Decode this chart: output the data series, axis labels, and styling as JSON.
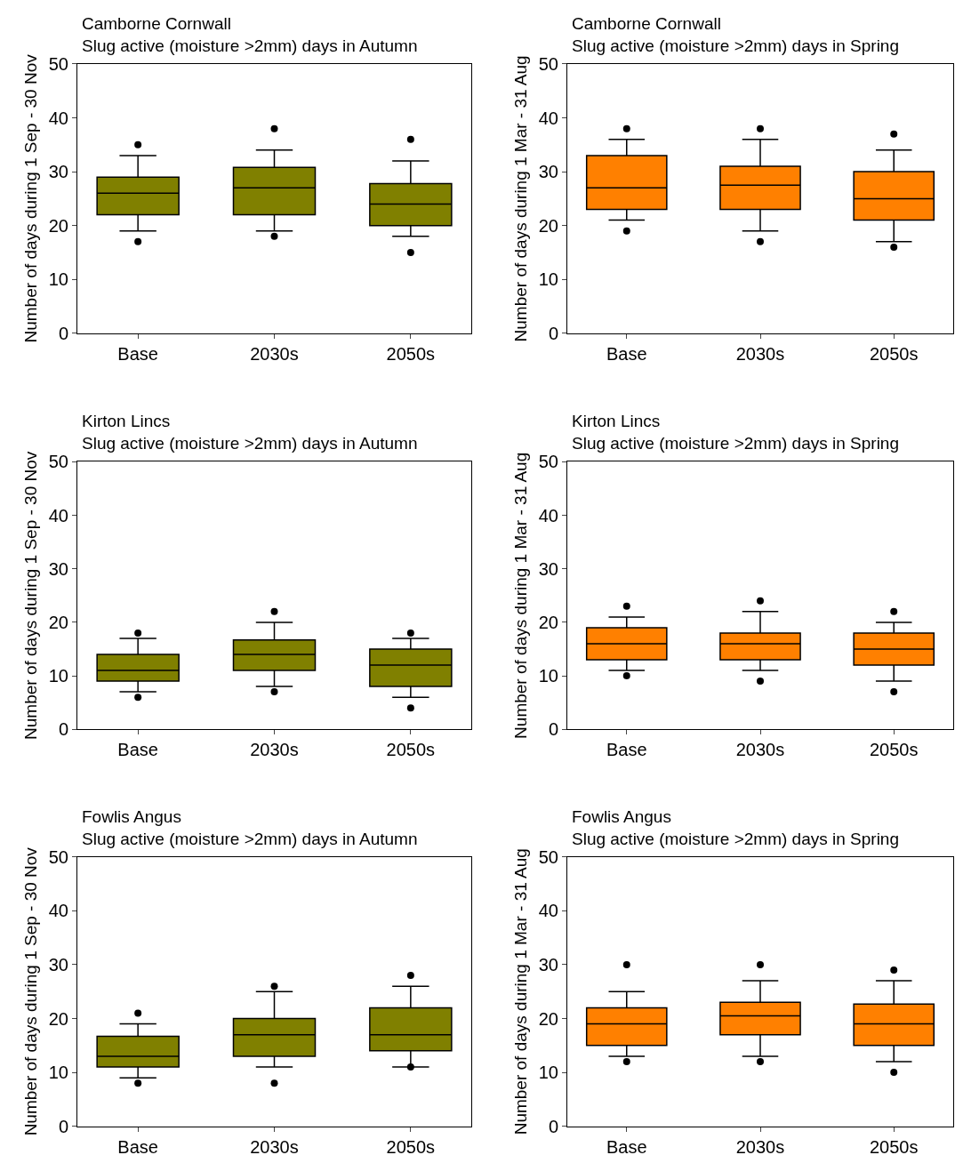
{
  "chart_data": [
    {
      "type": "box",
      "title": "Camborne Cornwall",
      "subtitle": "Slug active (moisture >2mm) days in Autumn",
      "ylabel": "Number of days during 1 Sep - 30 Nov",
      "categories": [
        "Base",
        "2030s",
        "2050s"
      ],
      "color": "#808000",
      "ylim": [
        0,
        50
      ],
      "yticks": [
        0,
        10,
        20,
        30,
        40,
        50
      ],
      "boxes": [
        {
          "low": 19,
          "q1": 22,
          "median": 26,
          "q3": 29,
          "high": 33,
          "outliers": [
            35,
            17
          ]
        },
        {
          "low": 19,
          "q1": 22,
          "median": 27,
          "q3": 30.8,
          "high": 34,
          "outliers": [
            38,
            18
          ]
        },
        {
          "low": 18,
          "q1": 20,
          "median": 24,
          "q3": 27.8,
          "high": 32,
          "outliers": [
            36,
            15
          ]
        }
      ]
    },
    {
      "type": "box",
      "title": "Camborne Cornwall",
      "subtitle": "Slug active (moisture >2mm) days in Spring",
      "ylabel": "Number of days during 1 Mar - 31 Aug",
      "categories": [
        "Base",
        "2030s",
        "2050s"
      ],
      "color": "#ff8000",
      "ylim": [
        0,
        50
      ],
      "yticks": [
        0,
        10,
        20,
        30,
        40,
        50
      ],
      "boxes": [
        {
          "low": 21,
          "q1": 23,
          "median": 27,
          "q3": 33,
          "high": 36,
          "outliers": [
            38,
            19
          ]
        },
        {
          "low": 19,
          "q1": 23,
          "median": 27.5,
          "q3": 31,
          "high": 36,
          "outliers": [
            38,
            17
          ]
        },
        {
          "low": 17,
          "q1": 21,
          "median": 25,
          "q3": 30,
          "high": 34,
          "outliers": [
            37,
            16
          ]
        }
      ]
    },
    {
      "type": "box",
      "title": "Kirton Lincs",
      "subtitle": "Slug active (moisture >2mm) days in Autumn",
      "ylabel": "Number of days during 1 Sep - 30 Nov",
      "categories": [
        "Base",
        "2030s",
        "2050s"
      ],
      "color": "#808000",
      "ylim": [
        0,
        50
      ],
      "yticks": [
        0,
        10,
        20,
        30,
        40,
        50
      ],
      "boxes": [
        {
          "low": 7,
          "q1": 9,
          "median": 11,
          "q3": 14,
          "high": 17,
          "outliers": [
            18,
            6
          ]
        },
        {
          "low": 8,
          "q1": 11,
          "median": 14,
          "q3": 16.7,
          "high": 20,
          "outliers": [
            22,
            7
          ]
        },
        {
          "low": 6,
          "q1": 8,
          "median": 12,
          "q3": 15,
          "high": 17,
          "outliers": [
            18,
            4
          ]
        }
      ]
    },
    {
      "type": "box",
      "title": "Kirton Lincs",
      "subtitle": "Slug active (moisture >2mm) days in Spring",
      "ylabel": "Number of days during 1 Mar - 31 Aug",
      "categories": [
        "Base",
        "2030s",
        "2050s"
      ],
      "color": "#ff8000",
      "ylim": [
        0,
        50
      ],
      "yticks": [
        0,
        10,
        20,
        30,
        40,
        50
      ],
      "boxes": [
        {
          "low": 11,
          "q1": 13,
          "median": 16,
          "q3": 19,
          "high": 21,
          "outliers": [
            23,
            10
          ]
        },
        {
          "low": 11,
          "q1": 13,
          "median": 16,
          "q3": 18,
          "high": 22,
          "outliers": [
            24,
            9
          ]
        },
        {
          "low": 9,
          "q1": 12,
          "median": 15,
          "q3": 18,
          "high": 20,
          "outliers": [
            22,
            7
          ]
        }
      ]
    },
    {
      "type": "box",
      "title": "Fowlis Angus",
      "subtitle": "Slug active (moisture >2mm) days in Autumn",
      "ylabel": "Number of days during 1 Sep - 30 Nov",
      "categories": [
        "Base",
        "2030s",
        "2050s"
      ],
      "color": "#808000",
      "ylim": [
        0,
        50
      ],
      "yticks": [
        0,
        10,
        20,
        30,
        40,
        50
      ],
      "boxes": [
        {
          "low": 9,
          "q1": 11,
          "median": 13,
          "q3": 16.7,
          "high": 19,
          "outliers": [
            21,
            8
          ]
        },
        {
          "low": 11,
          "q1": 13,
          "median": 17,
          "q3": 20,
          "high": 25,
          "outliers": [
            26,
            8
          ]
        },
        {
          "low": 11,
          "q1": 14,
          "median": 17,
          "q3": 22,
          "high": 26,
          "outliers": [
            28,
            11
          ]
        }
      ]
    },
    {
      "type": "box",
      "title": "Fowlis Angus",
      "subtitle": "Slug active (moisture >2mm) days in Spring",
      "ylabel": "Number of days during 1 Mar - 31 Aug",
      "categories": [
        "Base",
        "2030s",
        "2050s"
      ],
      "color": "#ff8000",
      "ylim": [
        0,
        50
      ],
      "yticks": [
        0,
        10,
        20,
        30,
        40,
        50
      ],
      "boxes": [
        {
          "low": 13,
          "q1": 15,
          "median": 19,
          "q3": 22,
          "high": 25,
          "outliers": [
            30,
            12
          ]
        },
        {
          "low": 13,
          "q1": 17,
          "median": 20.5,
          "q3": 23,
          "high": 27,
          "outliers": [
            30,
            12
          ]
        },
        {
          "low": 12,
          "q1": 15,
          "median": 19,
          "q3": 22.7,
          "high": 27,
          "outliers": [
            29,
            10
          ]
        }
      ]
    }
  ]
}
